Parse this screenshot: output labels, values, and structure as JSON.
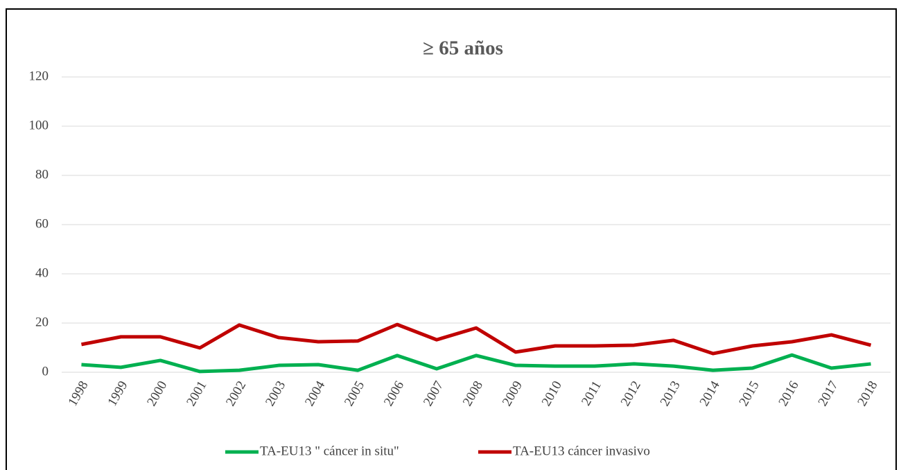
{
  "chart_data": {
    "type": "line",
    "title": "≥ 65 años",
    "categories": [
      "1998",
      "1999",
      "2000",
      "2001",
      "2002",
      "2003",
      "2004",
      "2005",
      "2006",
      "2007",
      "2008",
      "2009",
      "2010",
      "2011",
      "2012",
      "2013",
      "2014",
      "2015",
      "2016",
      "2017",
      "2018"
    ],
    "series": [
      {
        "name": "TA-EU13 \" cáncer in situ\"",
        "color": "#00b050",
        "values": [
          3.1,
          2,
          4.8,
          0.3,
          0.8,
          2.8,
          3.1,
          0.8,
          6.8,
          1.4,
          6.8,
          2.8,
          2.5,
          2.5,
          3.4,
          2.5,
          0.8,
          1.7,
          7,
          1.7,
          3.4
        ]
      },
      {
        "name": "TA-EU13 cáncer invasivo",
        "color": "#c00000",
        "values": [
          11.3,
          14.4,
          14.4,
          9.9,
          19.2,
          14.1,
          12.4,
          12.7,
          19.4,
          13.2,
          18,
          8.2,
          10.7,
          10.7,
          11,
          13,
          7.6,
          10.7,
          12.4,
          15.2,
          11
        ]
      }
    ],
    "ylim": [
      0,
      120
    ],
    "yticks": [
      0,
      20,
      40,
      60,
      80,
      100,
      120
    ],
    "grid": true,
    "legend": "bottom"
  }
}
